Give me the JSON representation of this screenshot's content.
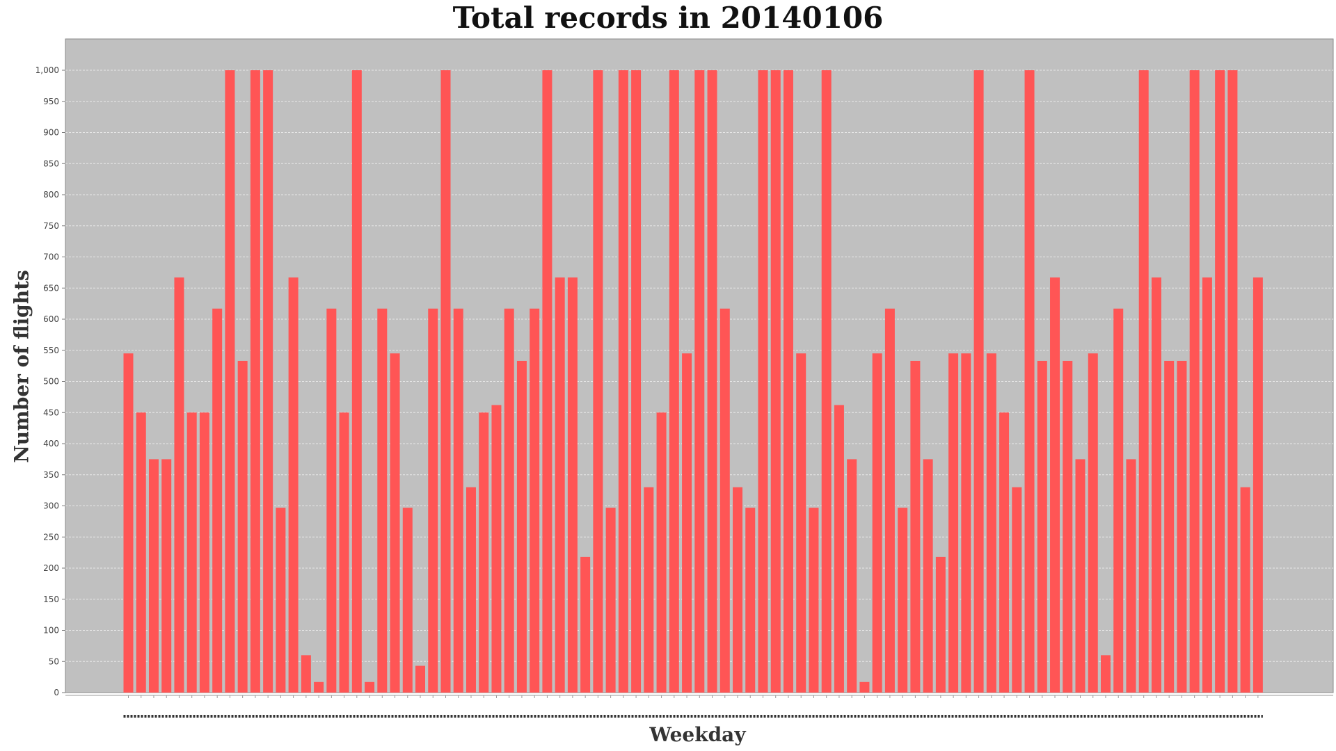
{
  "chart_data": {
    "type": "bar",
    "title": "Total records in 20140106",
    "xlabel": "Weekday",
    "ylabel": "Number of flights",
    "ylim": [
      0,
      1050
    ],
    "yticks": [
      "0",
      "50",
      "100",
      "150",
      "200",
      "250",
      "300",
      "350",
      "400",
      "450",
      "500",
      "550",
      "600",
      "650",
      "700",
      "750",
      "800",
      "850",
      "900",
      "950",
      "1,000"
    ],
    "grid": true,
    "legend": "none",
    "colors": {
      "bar": "#ff5555",
      "plot_bg": "#c0c0c0",
      "grid": "#e8e8e8"
    },
    "values": [
      545,
      450,
      375,
      375,
      667,
      450,
      450,
      617,
      1000,
      533,
      1000,
      1000,
      297,
      667,
      60,
      17,
      617,
      450,
      1000,
      17,
      617,
      545,
      297,
      43,
      617,
      1000,
      617,
      330,
      450,
      462,
      617,
      533,
      617,
      1000,
      667,
      667,
      218,
      1000,
      297,
      1000,
      1000,
      330,
      450,
      1000,
      545,
      1000,
      1000,
      617,
      330,
      297,
      1000,
      1000,
      1000,
      545,
      297,
      1000,
      462,
      375,
      17,
      545,
      617,
      297,
      533,
      375,
      218,
      545,
      545,
      1000,
      545,
      450,
      330,
      1000,
      533,
      667,
      533,
      375,
      545,
      60,
      617,
      375,
      1000,
      667,
      533,
      533,
      1000,
      667,
      1000,
      1000,
      330,
      667
    ]
  }
}
